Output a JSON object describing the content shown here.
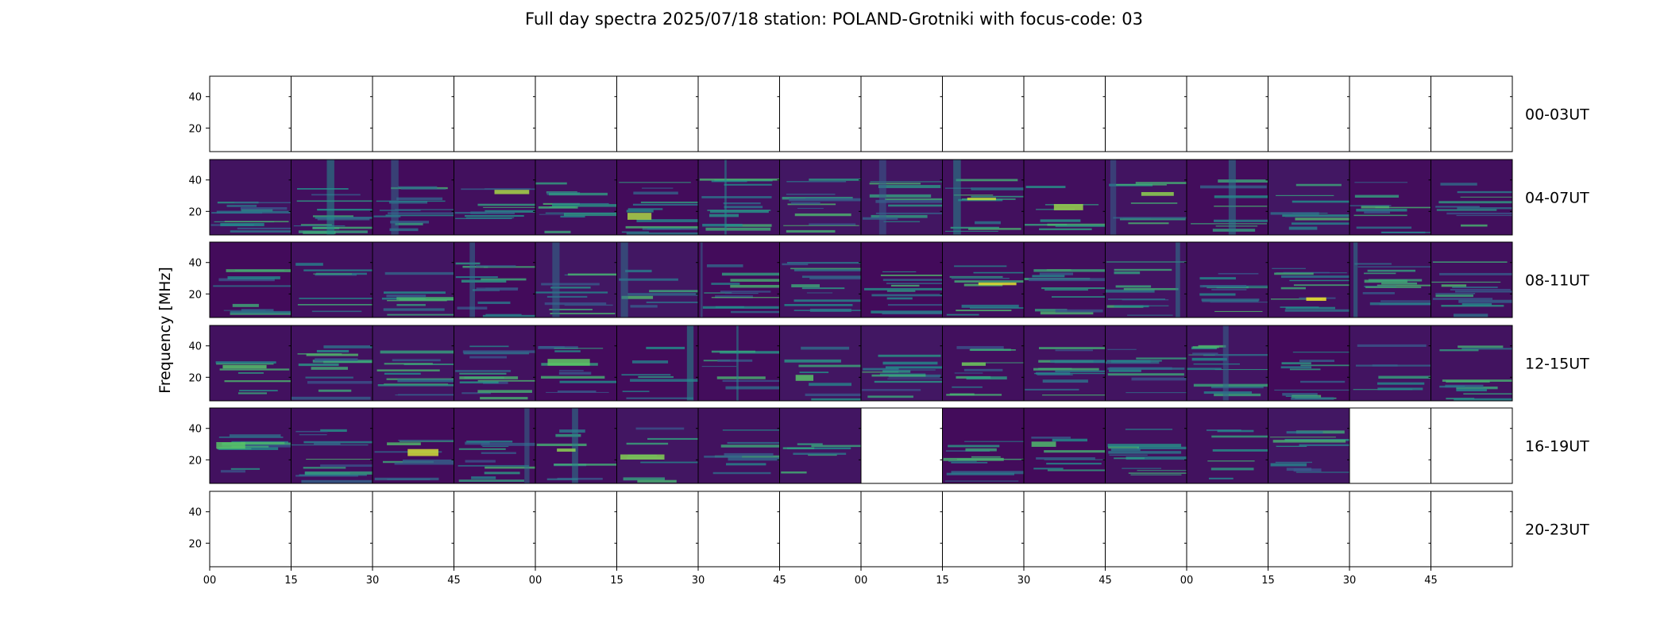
{
  "title": "Full day spectra 2025/07/18 station: POLAND-Grotniki with focus-code: 03",
  "colors": {
    "viridis_dark": "#440154",
    "viridis_mid": "#21918c",
    "viridis_bright": "#fde725",
    "frame": "#000000"
  },
  "chart_data": {
    "type": "heatmap",
    "ylabel": "Frequency [MHz]",
    "yticks": [
      20,
      40
    ],
    "ylim": [
      5,
      53
    ],
    "xtick_labels": [
      "00",
      "15",
      "30",
      "45",
      "00",
      "15",
      "30",
      "45",
      "00",
      "15",
      "30",
      "45",
      "00",
      "15",
      "30",
      "45"
    ],
    "rows": [
      {
        "label": "00-03UT",
        "panels": [
          0,
          0,
          0,
          0,
          0,
          0,
          0,
          0,
          0,
          0,
          0,
          0,
          0,
          0,
          0,
          0
        ]
      },
      {
        "label": "04-07UT",
        "panels": [
          1,
          1,
          1,
          1,
          1,
          1,
          1,
          1,
          1,
          1,
          1,
          1,
          1,
          1,
          1,
          1
        ]
      },
      {
        "label": "08-11UT",
        "panels": [
          1,
          1,
          1,
          1,
          1,
          1,
          1,
          1,
          1,
          1,
          1,
          1,
          1,
          1,
          1,
          1
        ]
      },
      {
        "label": "12-15UT",
        "panels": [
          1,
          1,
          1,
          1,
          1,
          1,
          1,
          1,
          1,
          1,
          1,
          1,
          1,
          1,
          1,
          1
        ]
      },
      {
        "label": "16-19UT",
        "panels": [
          1,
          1,
          1,
          1,
          1,
          1,
          1,
          1,
          0,
          1,
          1,
          1,
          1,
          1,
          0,
          0
        ]
      },
      {
        "label": "20-23UT",
        "panels": [
          0,
          0,
          0,
          0,
          0,
          0,
          0,
          0,
          0,
          0,
          0,
          0,
          0,
          0,
          0,
          0
        ]
      }
    ]
  }
}
